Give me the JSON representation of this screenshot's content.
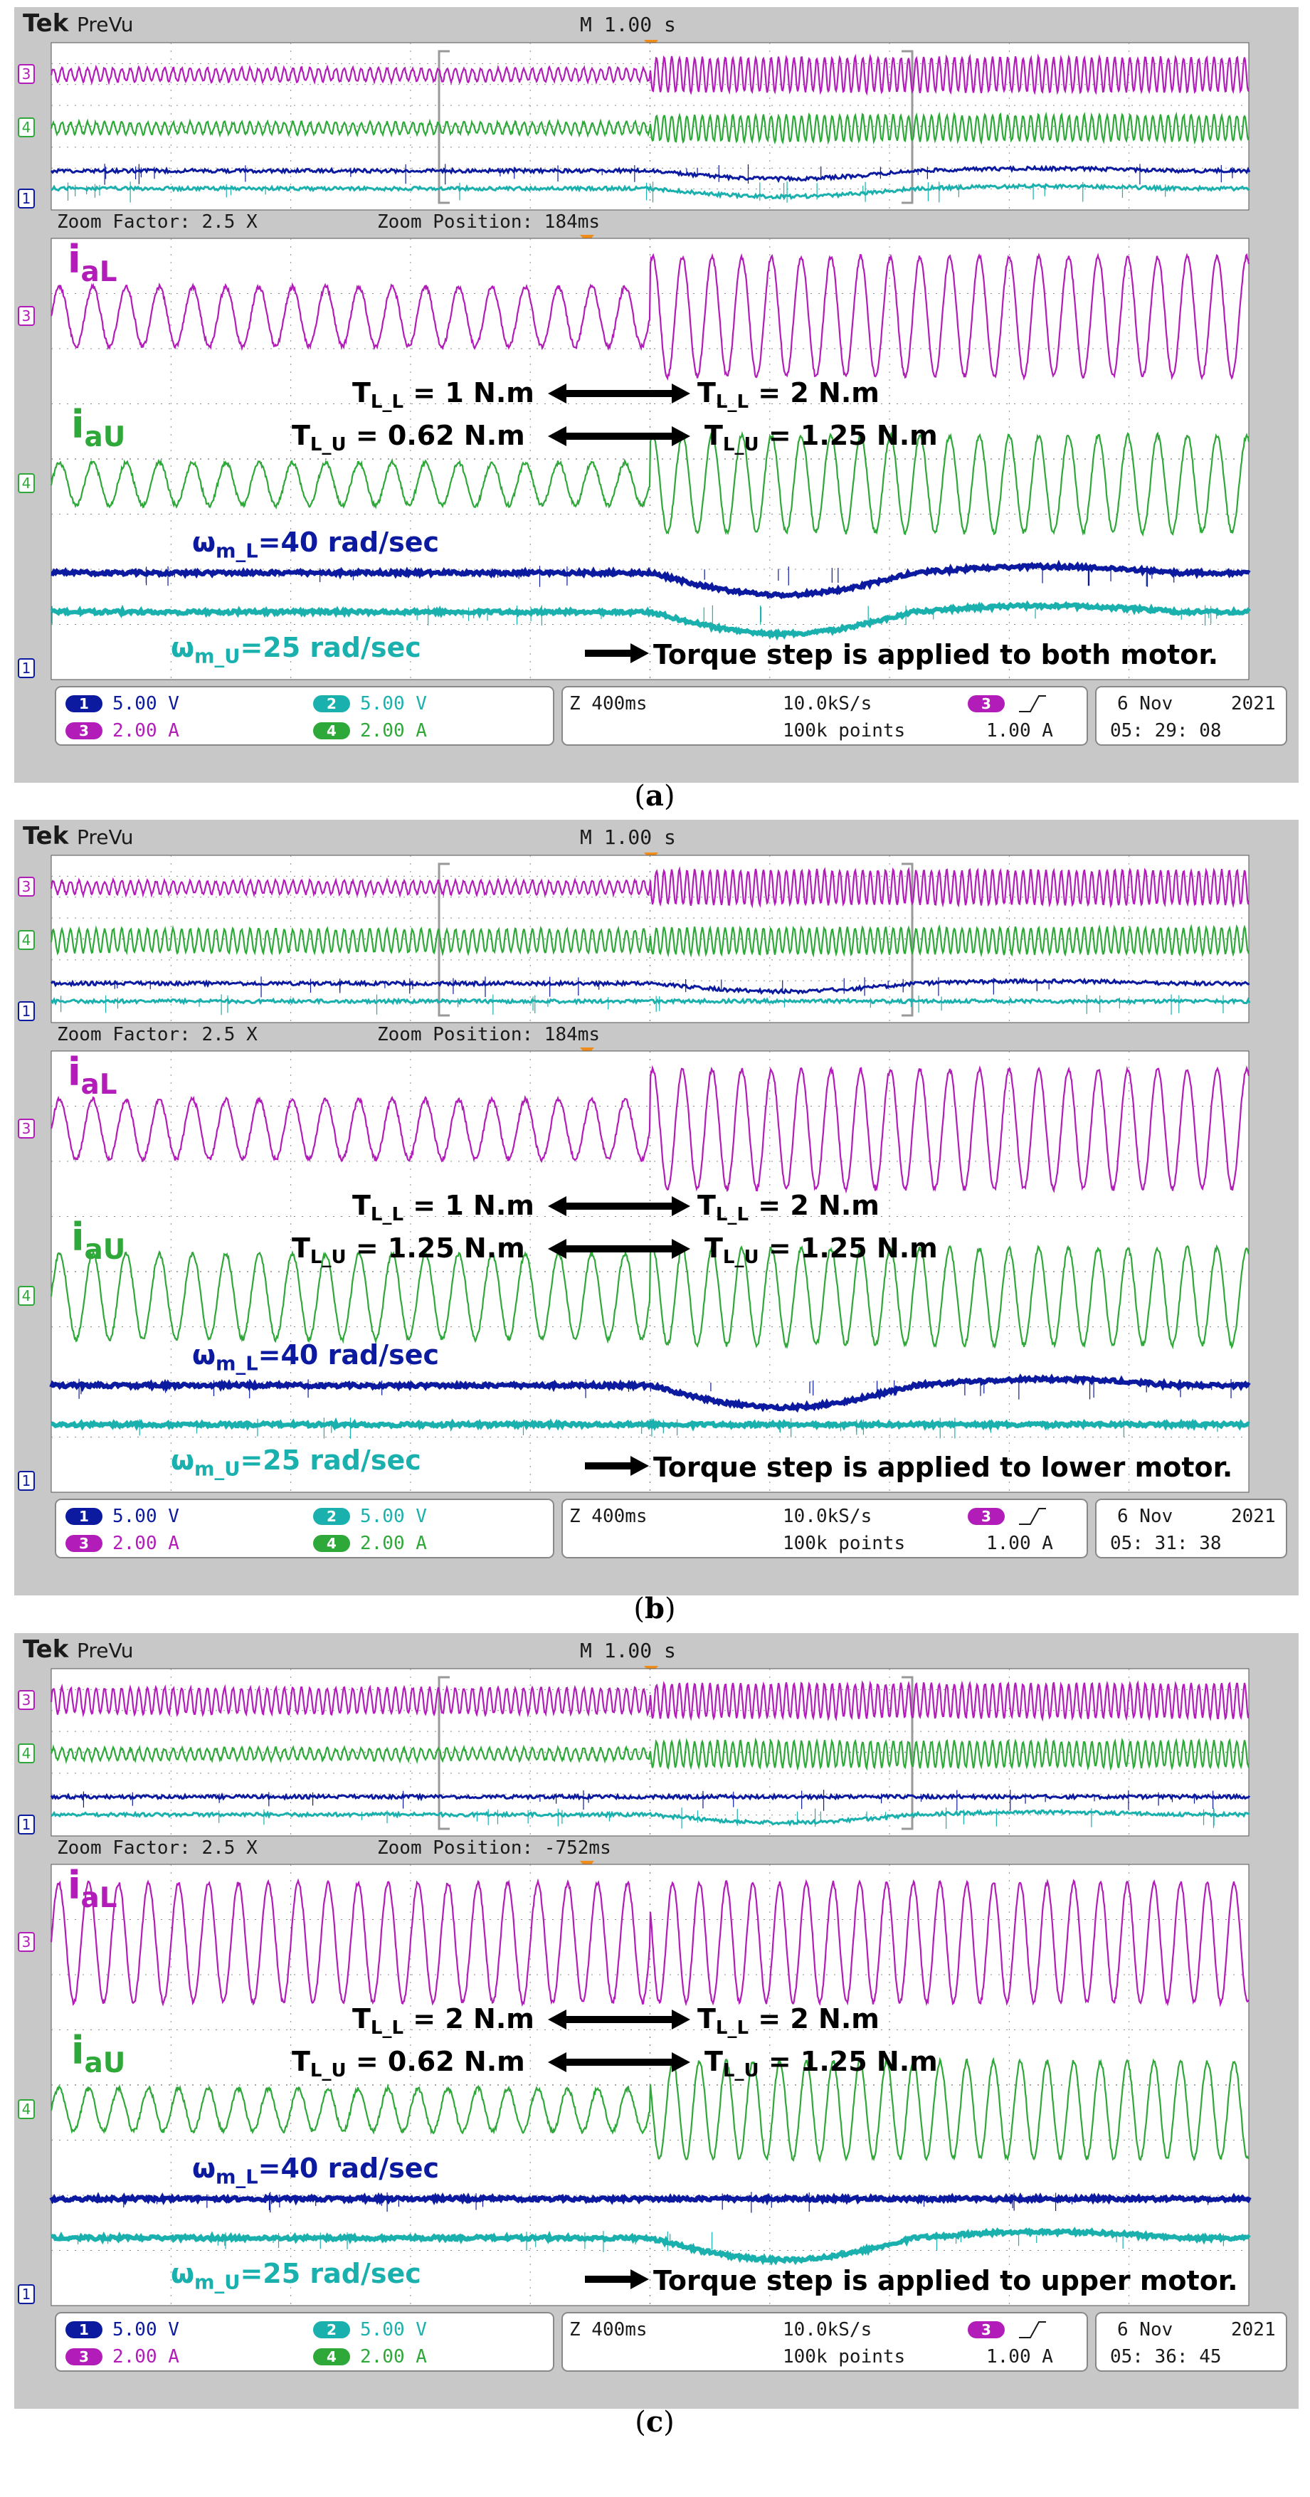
{
  "colors": {
    "ch1": "#0b1a9e",
    "ch2": "#1ab0ad",
    "ch3": "#b21cb8",
    "ch4": "#2fa83a",
    "screen_bg": "#ffffff",
    "bezel": "#c8c8c8",
    "grid": "#8a8a8a"
  },
  "panels": [
    {
      "caption_letter": "a",
      "header": {
        "brand": "Tek",
        "mode": "PreVu",
        "timebase": "M 1.00 s"
      },
      "zoom": {
        "factor_label": "Zoom Factor: 2.5 X",
        "position_label": "Zoom Position: 184ms"
      },
      "labels": {
        "i_aL": "i",
        "i_aL_sub": "aL",
        "i_aU": "i",
        "i_aU_sub": "aU",
        "w_L": "ω",
        "w_L_sub": "m_L",
        "w_L_tail": "=40 rad/sec",
        "w_U": "ω",
        "w_U_sub": "m_U",
        "w_U_tail": "=25 rad/sec"
      },
      "torque": {
        "left_L_pre": "T",
        "left_L_sub": "L_L",
        "left_L_val": " = 1 N.m",
        "right_L_pre": "T",
        "right_L_sub": "L_L",
        "right_L_val": " = 2 N.m",
        "left_U_pre": "T",
        "left_U_sub": "L_U",
        "left_U_val": " = 0.62 N.m",
        "right_U_pre": "T",
        "right_U_sub": "L_U",
        "right_U_val": " = 1.25 N.m"
      },
      "note": "Torque step is applied to both motor.",
      "status": {
        "ch1": "5.00 V",
        "ch2": "5.00 V",
        "ch3": "2.00 A",
        "ch4": "2.00 A",
        "zoom_time": "Z 400ms",
        "sample_rate": "10.0kS/s",
        "points": "100k points",
        "trig_level": "1.00 A",
        "date": "6 Nov",
        "year": "2021",
        "time": "05: 29: 08"
      }
    },
    {
      "caption_letter": "b",
      "header": {
        "brand": "Tek",
        "mode": "PreVu",
        "timebase": "M 1.00 s"
      },
      "zoom": {
        "factor_label": "Zoom Factor: 2.5 X",
        "position_label": "Zoom Position: 184ms"
      },
      "labels": {
        "i_aL": "i",
        "i_aL_sub": "aL",
        "i_aU": "i",
        "i_aU_sub": "aU",
        "w_L": "ω",
        "w_L_sub": "m_L",
        "w_L_tail": "=40 rad/sec",
        "w_U": "ω",
        "w_U_sub": "m_U",
        "w_U_tail": "=25 rad/sec"
      },
      "torque": {
        "left_L_pre": "T",
        "left_L_sub": "L_L",
        "left_L_val": " = 1 N.m",
        "right_L_pre": "T",
        "right_L_sub": "L_L",
        "right_L_val": " = 2 N.m",
        "left_U_pre": "T",
        "left_U_sub": "L_U",
        "left_U_val": " = 1.25 N.m",
        "right_U_pre": "T",
        "right_U_sub": "L_U",
        "right_U_val": " = 1.25 N.m"
      },
      "note": "Torque step is applied to lower motor.",
      "status": {
        "ch1": "5.00 V",
        "ch2": "5.00 V",
        "ch3": "2.00 A",
        "ch4": "2.00 A",
        "zoom_time": "Z 400ms",
        "sample_rate": "10.0kS/s",
        "points": "100k points",
        "trig_level": "1.00 A",
        "date": "6 Nov",
        "year": "2021",
        "time": "05: 31: 38"
      }
    },
    {
      "caption_letter": "c",
      "header": {
        "brand": "Tek",
        "mode": "PreVu",
        "timebase": "M 1.00 s"
      },
      "zoom": {
        "factor_label": "Zoom Factor: 2.5 X",
        "position_label": "Zoom Position: -752ms"
      },
      "labels": {
        "i_aL": "i",
        "i_aL_sub": "aL",
        "i_aU": "i",
        "i_aU_sub": "aU",
        "w_L": "ω",
        "w_L_sub": "m_L",
        "w_L_tail": "=40 rad/sec",
        "w_U": "ω",
        "w_U_sub": "m_U",
        "w_U_tail": "=25 rad/sec"
      },
      "torque": {
        "left_L_pre": "T",
        "left_L_sub": "L_L",
        "left_L_val": " = 2 N.m",
        "right_L_pre": "T",
        "right_L_sub": "L_L",
        "right_L_val": " = 2 N.m",
        "left_U_pre": "T",
        "left_U_sub": "L_U",
        "left_U_val": " = 0.62 N.m",
        "right_U_pre": "T",
        "right_U_sub": "L_U",
        "right_U_val": " = 1.25 N.m"
      },
      "note": "Torque step is applied to upper motor.",
      "status": {
        "ch1": "5.00 V",
        "ch2": "5.00 V",
        "ch3": "2.00 A",
        "ch4": "2.00 A",
        "zoom_time": "Z 400ms",
        "sample_rate": "10.0kS/s",
        "points": "100k points",
        "trig_level": "1.00 A",
        "date": "6 Nov",
        "year": "2021",
        "time": "05: 36: 45"
      }
    }
  ],
  "chart_data": [
    {
      "type": "line",
      "panel": "a",
      "step_time_fraction": 0.5,
      "series": [
        {
          "channel": 3,
          "amplitude_before": 1.0,
          "amplitude_after": 2.0,
          "cycles_zoom": 36
        },
        {
          "channel": 4,
          "amplitude_before": 1.0,
          "amplitude_after": 2.0,
          "cycles_zoom": 36
        },
        {
          "channel": 1,
          "speed_dip": 1.0
        },
        {
          "channel": 2,
          "speed_dip": 1.0
        }
      ]
    },
    {
      "type": "line",
      "panel": "b",
      "step_time_fraction": 0.5,
      "series": [
        {
          "channel": 3,
          "amplitude_before": 1.0,
          "amplitude_after": 2.0,
          "cycles_zoom": 36
        },
        {
          "channel": 4,
          "amplitude_before": 2.0,
          "amplitude_after": 2.0,
          "cycles_zoom": 36
        },
        {
          "channel": 1,
          "speed_dip": 1.0
        },
        {
          "channel": 2,
          "speed_dip": 0.0
        }
      ]
    },
    {
      "type": "line",
      "panel": "c",
      "step_time_fraction": 0.5,
      "series": [
        {
          "channel": 3,
          "amplitude_before": 2.0,
          "amplitude_after": 2.0,
          "cycles_zoom": 40
        },
        {
          "channel": 4,
          "amplitude_before": 1.0,
          "amplitude_after": 2.0,
          "cycles_zoom": 40
        },
        {
          "channel": 1,
          "speed_dip": 0.0
        },
        {
          "channel": 2,
          "speed_dip": 1.0
        }
      ]
    }
  ]
}
